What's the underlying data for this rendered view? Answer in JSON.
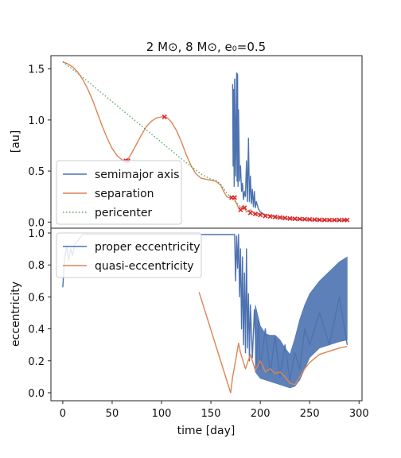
{
  "figure": {
    "title": "2 M⊙, 8 M⊙, e₀=0.5"
  },
  "colors": {
    "blue": "#4c72b0",
    "orange": "#dd8452",
    "green": "#55a868",
    "red": "#e8202a",
    "axes": "#222222"
  },
  "chart_data": [
    {
      "type": "line",
      "ylabel": "[au]",
      "xlim": [
        -12,
        303
      ],
      "ylim": [
        -0.06,
        1.63
      ],
      "yticks": [
        0.0,
        0.5,
        1.0,
        1.5
      ],
      "ytick_labels": [
        "0.0",
        "0.5",
        "1.0",
        "1.5"
      ],
      "legend": {
        "placement": "lower-left"
      },
      "series": [
        {
          "name": "semimajor axis",
          "color": "blue",
          "style": "solid",
          "x": [
            172,
            172.5,
            173,
            173.5,
            174,
            175,
            176,
            176.5,
            177,
            177.5,
            178,
            179,
            180,
            181,
            182,
            183,
            184,
            185,
            186,
            187,
            188,
            189,
            190,
            191,
            192,
            193,
            194,
            195,
            196,
            198,
            200,
            203,
            206,
            210,
            215,
            220,
            230,
            240,
            250,
            260,
            270,
            280,
            288
          ],
          "y": [
            1.35,
            0.55,
            1.3,
            0.35,
            1.4,
            0.45,
            1.46,
            0.4,
            1.45,
            0.35,
            1.1,
            0.4,
            0.55,
            0.3,
            0.38,
            0.22,
            0.3,
            0.25,
            0.6,
            0.2,
            0.82,
            0.2,
            0.45,
            0.18,
            0.32,
            0.15,
            0.3,
            0.14,
            0.2,
            0.13,
            0.1,
            0.08,
            0.07,
            0.06,
            0.05,
            0.04,
            0.03,
            0.025,
            0.02,
            0.018,
            0.017,
            0.016,
            0.015
          ]
        },
        {
          "name": "separation",
          "color": "orange",
          "style": "solid",
          "x": [
            0,
            5,
            10,
            15,
            20,
            25,
            30,
            35,
            40,
            45,
            50,
            55,
            60,
            63,
            65,
            67,
            70,
            75,
            80,
            85,
            90,
            95,
            100,
            103,
            106,
            110,
            115,
            120,
            125,
            130,
            135,
            140,
            145,
            150,
            155,
            160,
            163,
            166,
            168,
            170,
            172,
            174,
            176,
            178,
            180,
            183,
            186,
            190,
            195,
            200,
            210,
            220,
            230,
            240,
            250,
            260,
            270,
            280,
            288
          ],
          "y": [
            1.57,
            1.55,
            1.52,
            1.47,
            1.4,
            1.31,
            1.2,
            1.07,
            0.94,
            0.82,
            0.72,
            0.65,
            0.61,
            0.6,
            0.61,
            0.63,
            0.68,
            0.77,
            0.86,
            0.94,
            0.99,
            1.02,
            1.03,
            1.03,
            1.02,
            0.98,
            0.9,
            0.79,
            0.66,
            0.55,
            0.47,
            0.43,
            0.42,
            0.41,
            0.4,
            0.36,
            0.3,
            0.25,
            0.24,
            0.24,
            0.23,
            0.22,
            0.18,
            0.14,
            0.14,
            0.16,
            0.1,
            0.12,
            0.07,
            0.08,
            0.06,
            0.045,
            0.035,
            0.03,
            0.025,
            0.022,
            0.02,
            0.02,
            0.02
          ]
        },
        {
          "name": "pericenter",
          "color": "green",
          "style": "dotted",
          "x": [
            0,
            20,
            40,
            60,
            80,
            100,
            120,
            140,
            150,
            155,
            160,
            165,
            170,
            175,
            180,
            190,
            200,
            220,
            240,
            260,
            280,
            288
          ],
          "y": [
            1.57,
            1.42,
            1.26,
            1.1,
            0.94,
            0.78,
            0.62,
            0.47,
            0.42,
            0.41,
            0.37,
            0.3,
            0.24,
            0.2,
            0.15,
            0.1,
            0.08,
            0.05,
            0.035,
            0.025,
            0.02,
            0.02
          ]
        }
      ],
      "markers": {
        "name": "pericenter passages",
        "color": "red",
        "x": [
          64,
          66,
          103,
          171,
          174,
          180,
          184,
          190,
          195,
          200,
          205,
          210,
          215,
          220,
          225,
          230,
          235,
          240,
          245,
          250,
          255,
          260,
          265,
          270,
          275,
          280,
          285,
          288
        ],
        "y": [
          0.6,
          0.6,
          1.03,
          0.24,
          0.24,
          0.12,
          0.14,
          0.09,
          0.08,
          0.07,
          0.06,
          0.055,
          0.05,
          0.045,
          0.04,
          0.035,
          0.032,
          0.03,
          0.028,
          0.026,
          0.024,
          0.022,
          0.021,
          0.02,
          0.02,
          0.02,
          0.02,
          0.02
        ]
      }
    },
    {
      "type": "line",
      "ylabel": "eccentricity",
      "xlabel": "time [day]",
      "xlim": [
        -12,
        303
      ],
      "ylim": [
        -0.05,
        1.03
      ],
      "yticks": [
        0.0,
        0.2,
        0.4,
        0.6,
        0.8,
        1.0
      ],
      "ytick_labels": [
        "0.0",
        "0.2",
        "0.4",
        "0.6",
        "0.8",
        "1.0"
      ],
      "xticks": [
        0,
        50,
        100,
        150,
        200,
        250,
        300
      ],
      "xtick_labels": [
        "0",
        "50",
        "100",
        "150",
        "200",
        "250",
        "300"
      ],
      "legend": {
        "placement": "upper-left"
      },
      "series": [
        {
          "name": "proper eccentricity",
          "color": "blue",
          "style": "solid",
          "x": [
            0,
            2,
            4,
            6,
            8,
            10,
            12,
            15,
            20,
            40,
            80,
            120,
            150,
            160,
            170,
            174,
            175,
            176,
            177,
            178,
            179,
            180,
            181,
            182,
            183,
            184,
            185,
            186,
            187,
            188,
            189,
            190,
            192,
            194,
            196,
            198,
            200,
            205,
            210,
            215,
            220,
            225,
            230,
            235,
            240,
            245,
            250,
            260,
            270,
            280,
            288
          ],
          "y": [
            0.66,
            0.85,
            0.92,
            0.83,
            0.9,
            0.86,
            0.93,
            0.95,
            0.99,
            0.99,
            0.99,
            0.99,
            0.99,
            0.99,
            0.99,
            0.99,
            0.7,
            0.98,
            0.78,
            0.99,
            0.6,
            0.9,
            0.4,
            0.85,
            0.3,
            0.75,
            0.25,
            0.9,
            0.28,
            0.62,
            0.2,
            0.55,
            0.22,
            0.52,
            0.18,
            0.45,
            0.15,
            0.4,
            0.12,
            0.35,
            0.1,
            0.3,
            0.08,
            0.25,
            0.15,
            0.4,
            0.3,
            0.5,
            0.3,
            0.6,
            0.3
          ]
        },
        {
          "name": "quasi-eccentricity",
          "color": "orange",
          "style": "solid",
          "x": [
            138,
            170,
            172,
            175,
            178,
            180,
            185,
            190,
            195,
            200,
            205,
            210,
            215,
            220,
            225,
            230,
            235,
            240,
            245,
            250,
            260,
            270,
            280,
            288
          ],
          "y": [
            0.63,
            0.0,
            0.1,
            0.2,
            0.31,
            0.25,
            0.15,
            0.24,
            0.14,
            0.2,
            0.13,
            0.15,
            0.12,
            0.13,
            0.1,
            0.06,
            0.05,
            0.1,
            0.15,
            0.19,
            0.24,
            0.26,
            0.28,
            0.29
          ]
        }
      ],
      "envelopes": {
        "note": "dense oscillation of proper eccentricity",
        "x": [
          195,
          200,
          205,
          210,
          215,
          220,
          225,
          230,
          235,
          240,
          245,
          250,
          260,
          270,
          280,
          288
        ],
        "upper": [
          0.55,
          0.42,
          0.37,
          0.36,
          0.36,
          0.33,
          0.28,
          0.24,
          0.34,
          0.46,
          0.55,
          0.62,
          0.7,
          0.76,
          0.82,
          0.85
        ],
        "lower": [
          0.13,
          0.09,
          0.08,
          0.07,
          0.06,
          0.05,
          0.04,
          0.03,
          0.04,
          0.08,
          0.15,
          0.22,
          0.28,
          0.3,
          0.32,
          0.33
        ]
      }
    }
  ]
}
